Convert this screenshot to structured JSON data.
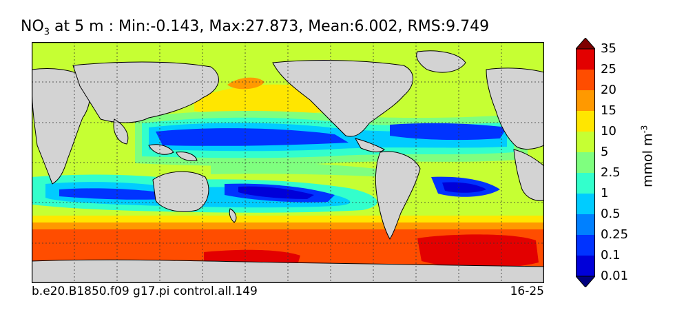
{
  "title": {
    "species": "NO",
    "subscript": "3",
    "rest": " at 5 m : Min:-0.143, Max:27.873, Mean:6.002, RMS:9.749"
  },
  "footer": {
    "case_name": "b.e20.B1850.f09 g17.pi control.all.149",
    "years": "16-25"
  },
  "colorbar": {
    "units_base": "mmol m",
    "units_exponent": "-3",
    "levels": [
      "0.01",
      "0.1",
      "0.25",
      "0.5",
      "1",
      "2.5",
      "5",
      "10",
      "15",
      "20",
      "25",
      "35"
    ],
    "colors": [
      "#00007f",
      "#0000d9",
      "#0033ff",
      "#0080ff",
      "#00ccff",
      "#33ffcc",
      "#7fff7f",
      "#c6ff33",
      "#ffe600",
      "#ff9900",
      "#ff4d00",
      "#e30000",
      "#7f0000"
    ],
    "extend": "both"
  },
  "map": {
    "projection": "cylindrical",
    "land_color": "#d3d3d3",
    "grid": "dotted"
  }
}
